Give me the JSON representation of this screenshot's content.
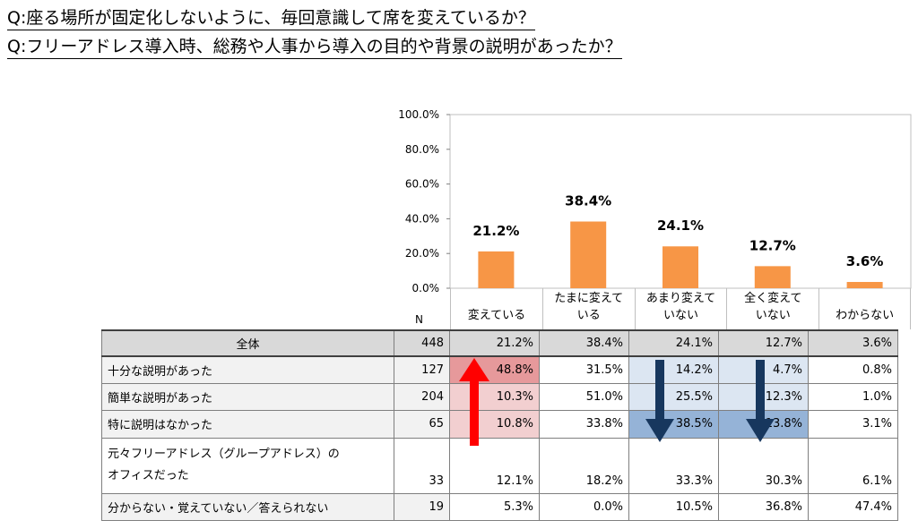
{
  "questions": [
    "Q:座る場所が固定化しないように、毎回意識して席を変えているか？",
    "Q:フリーアドレス導入時、総務や人事から導入の目的や背景の説明があったか？"
  ],
  "chart_data": {
    "type": "bar",
    "categories": [
      [
        "",
        "変えている"
      ],
      [
        "たまに変えて",
        "いる"
      ],
      [
        "あまり変えて",
        "いない"
      ],
      [
        "全く変えて",
        "いない"
      ],
      [
        "",
        "わからない"
      ]
    ],
    "values": [
      21.2,
      38.4,
      24.1,
      12.7,
      3.6
    ],
    "data_labels": [
      "21.2%",
      "38.4%",
      "24.1%",
      "12.7%",
      "3.6%"
    ],
    "ylim": [
      0,
      100
    ],
    "yticks": [
      "0.0%",
      "20.0%",
      "40.0%",
      "60.0%",
      "80.0%",
      "100.0%"
    ],
    "bar_color": "#f79646",
    "grid": false,
    "legend": "none"
  },
  "table": {
    "n_header": "N",
    "rows": [
      {
        "label": "全体",
        "n": "448",
        "values": [
          "21.2%",
          "38.4%",
          "24.1%",
          "12.7%",
          "3.6%"
        ]
      },
      {
        "label": "十分な説明があった",
        "n": "127",
        "values": [
          "48.8%",
          "31.5%",
          "14.2%",
          "4.7%",
          "0.8%"
        ]
      },
      {
        "label": "簡単な説明があった",
        "n": "204",
        "values": [
          "10.3%",
          "51.0%",
          "25.5%",
          "12.3%",
          "1.0%"
        ]
      },
      {
        "label": "特に説明はなかった",
        "n": "65",
        "values": [
          "10.8%",
          "33.8%",
          "38.5%",
          "13.8%",
          "3.1%"
        ]
      },
      {
        "label_lines": [
          "元々フリーアドレス（グループアドレス）の",
          "オフィスだった"
        ],
        "n": "33",
        "values": [
          "12.1%",
          "18.2%",
          "33.3%",
          "30.3%",
          "6.1%"
        ]
      },
      {
        "label": "分からない・覚えていない／答えられない",
        "n": "19",
        "values": [
          "5.3%",
          "0.0%",
          "10.5%",
          "36.8%",
          "47.4%"
        ]
      }
    ]
  },
  "colors": {
    "highlight_red_strong": "#e6999b",
    "highlight_red_light": "#f2cfd0",
    "highlight_blue_light": "#dce6f2",
    "highlight_blue_strong": "#95b3d7",
    "arrow_up": "#ff0000",
    "arrow_down": "#17375e"
  },
  "arrows": [
    {
      "direction": "up",
      "icon": "arrow-up-icon"
    },
    {
      "direction": "down",
      "icon": "arrow-down-icon"
    },
    {
      "direction": "down",
      "icon": "arrow-down-icon"
    }
  ]
}
